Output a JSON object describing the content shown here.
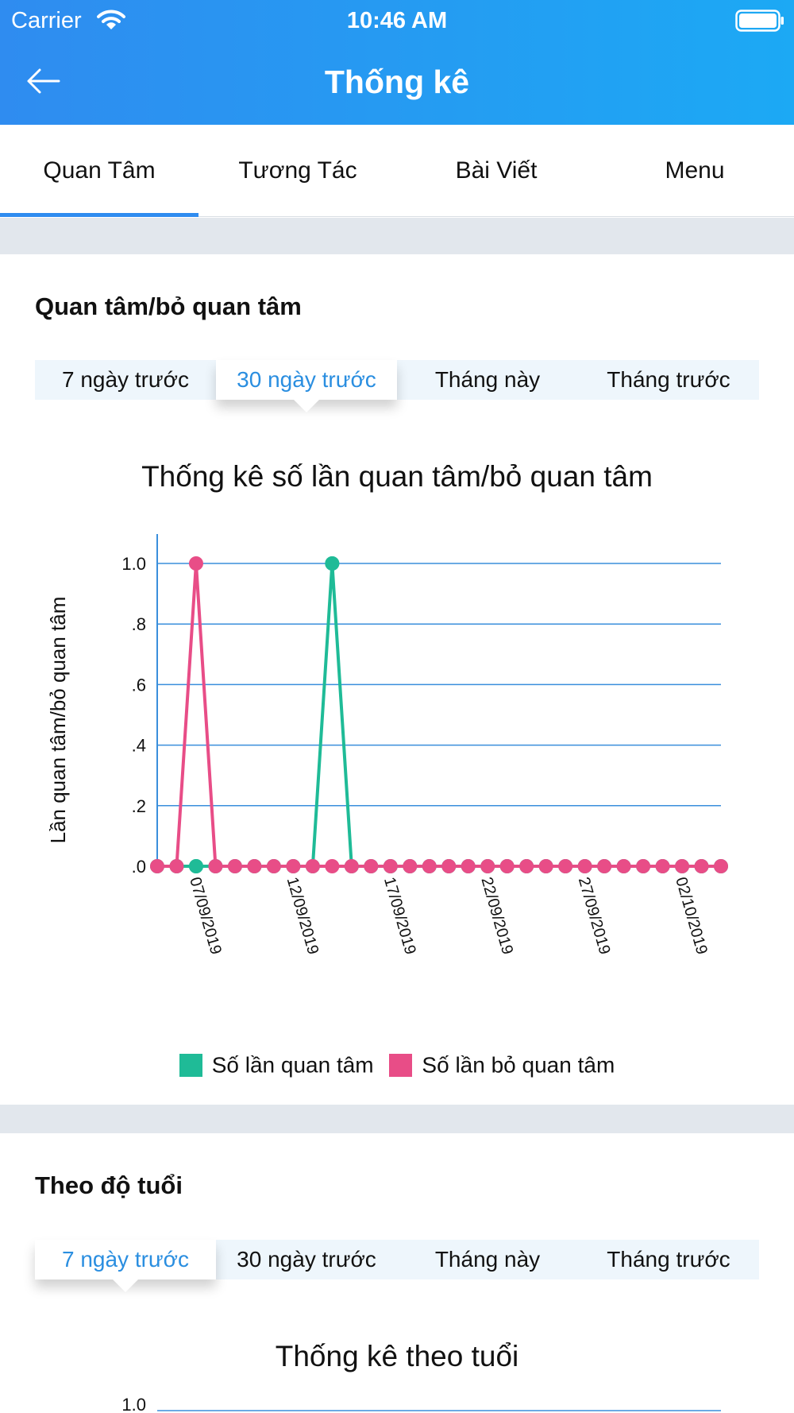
{
  "status_bar": {
    "carrier": "Carrier",
    "time": "10:46 AM",
    "wifi_icon": "wifi-icon",
    "battery_icon": "battery-icon"
  },
  "header": {
    "title": "Thống kê",
    "back_icon": "arrow-left-icon"
  },
  "main_tabs": {
    "items": [
      "Quan Tâm",
      "Tương Tác",
      "Bài Viết",
      "Menu"
    ],
    "active": 0
  },
  "colors": {
    "accent": "#2f8cf0",
    "follow": "#1fbb97",
    "unfollow": "#e84d87",
    "grid": "#3a8fdc",
    "separator": "#e2e7ed"
  },
  "section1": {
    "title": "Quan tâm/bỏ quan tâm",
    "segments": [
      "7 ngày trước",
      "30 ngày trước",
      "Tháng này",
      "Tháng trước"
    ],
    "active": 1
  },
  "chart_data": {
    "type": "line",
    "title": "Thống kê số lần quan tâm/bỏ quan tâm",
    "ylabel": "Lần quan tâm/bỏ quan tâm",
    "xlabel": "",
    "ylim": [
      0,
      1.0
    ],
    "y_ticks": [
      "1.0",
      ".8",
      ".6",
      ".4",
      ".2",
      ".0"
    ],
    "y_tick_values": [
      1.0,
      0.8,
      0.6,
      0.4,
      0.2,
      0.0
    ],
    "x_tick_labels": [
      "07/09/2019",
      "12/09/2019",
      "17/09/2019",
      "22/09/2019",
      "27/09/2019",
      "02/10/2019"
    ],
    "x_tick_indices": [
      2,
      7,
      12,
      17,
      22,
      27
    ],
    "grid": true,
    "legend_position": "bottom",
    "series": [
      {
        "name": "Số lần quan tâm",
        "color": "#1fbb97",
        "values": [
          0,
          0,
          0,
          0,
          0,
          0,
          0,
          0,
          0,
          1,
          0,
          0,
          0,
          0,
          0,
          0,
          0,
          0,
          0,
          0,
          0,
          0,
          0,
          0,
          0,
          0,
          0,
          0,
          0,
          0
        ]
      },
      {
        "name": "Số lần bỏ quan tâm",
        "color": "#e84d87",
        "values": [
          0,
          0,
          1,
          0,
          0,
          0,
          0,
          0,
          0,
          0,
          0,
          0,
          0,
          0,
          0,
          0,
          0,
          0,
          0,
          0,
          0,
          0,
          0,
          0,
          0,
          0,
          0,
          0,
          0,
          0
        ]
      }
    ]
  },
  "section2": {
    "title": "Theo độ tuổi",
    "segments": [
      "7 ngày trước",
      "30 ngày trước",
      "Tháng này",
      "Tháng trước"
    ],
    "active": 0,
    "chart_title": "Thống kê theo tuổi",
    "first_tick": "1.0"
  }
}
